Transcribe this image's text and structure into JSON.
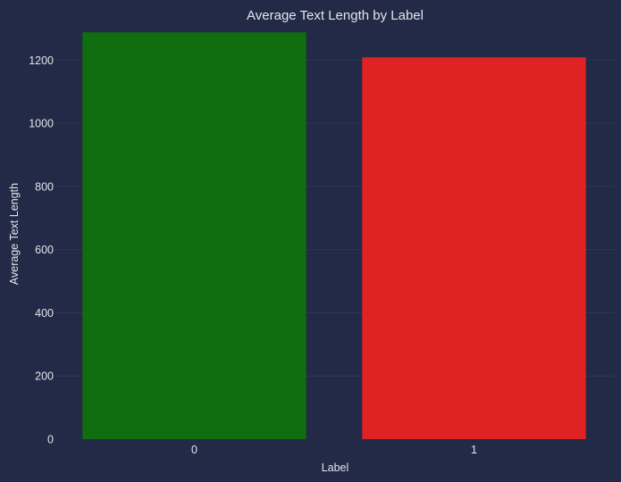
{
  "chart_data": {
    "type": "bar",
    "title": "Average Text Length by Label",
    "xlabel": "Label",
    "ylabel": "Average Text Length",
    "categories": [
      "0",
      "1"
    ],
    "values": [
      1288,
      1209
    ],
    "ylim": [
      0,
      1300
    ],
    "yticks": [
      0,
      200,
      400,
      600,
      800,
      1000,
      1200
    ],
    "grid": true,
    "colors": [
      "#106e10",
      "#df2222"
    ],
    "background": "#222a47"
  }
}
